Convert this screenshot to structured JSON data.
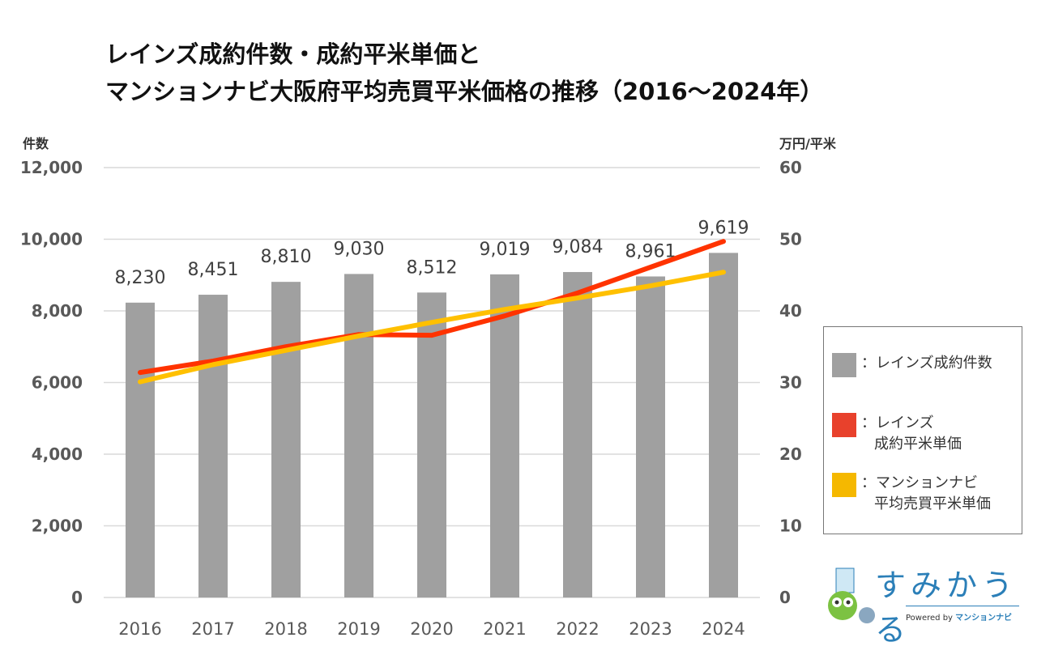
{
  "chart_data": {
    "type": "bar+line",
    "title_lines": [
      "レインズ成約件数・成約平米単価と",
      "マンションナビ大阪府平均売買平米価格の推移（2016〜2024年）"
    ],
    "categories": [
      "2016",
      "2017",
      "2018",
      "2019",
      "2020",
      "2021",
      "2022",
      "2023",
      "2024"
    ],
    "left_axis": {
      "label": "件数",
      "ylim": [
        0,
        12000
      ],
      "ticks": [
        "0",
        "2,000",
        "4,000",
        "6,000",
        "8,000",
        "10,000",
        "12,000"
      ]
    },
    "right_axis": {
      "label": "万円/平米",
      "ylim": [
        0,
        60
      ],
      "ticks": [
        "0",
        "10",
        "20",
        "30",
        "40",
        "50",
        "60"
      ]
    },
    "grid": true,
    "series": [
      {
        "name": "レインズ成約件数",
        "type": "bar",
        "axis": "left",
        "color": "#a0a0a0",
        "values": [
          8230,
          8451,
          8810,
          9030,
          8512,
          9019,
          9084,
          8961,
          9619
        ],
        "labels": [
          "8,230",
          "8,451",
          "8,810",
          "9,030",
          "8,512",
          "9,019",
          "9,084",
          "8,961",
          "9,619"
        ]
      },
      {
        "name": "レインズ成約平米単価",
        "type": "line",
        "axis": "right",
        "color": "#ff3300",
        "values": [
          31.4,
          33.0,
          35.0,
          36.7,
          36.6,
          39.3,
          42.5,
          46.1,
          49.7
        ]
      },
      {
        "name": "マンションナビ平均売買平米単価",
        "type": "line",
        "axis": "right",
        "color": "#ffc000",
        "values": [
          30.1,
          32.5,
          34.5,
          36.5,
          38.4,
          40.2,
          41.8,
          43.5,
          45.4
        ]
      }
    ],
    "legend": {
      "placement": "right",
      "items": [
        {
          "lines": [
            "：レインズ成約件数"
          ],
          "color": "#a0a0a0"
        },
        {
          "lines": [
            "：レインズ",
            "成約平米単価"
          ],
          "color": "#e8412c"
        },
        {
          "lines": [
            "：マンションナビ",
            "平均売買平米単価"
          ],
          "color": "#f5b800"
        }
      ]
    }
  },
  "logo": {
    "text": "すみかうる",
    "powered": "Powered by",
    "brand": "マンションナビ"
  }
}
